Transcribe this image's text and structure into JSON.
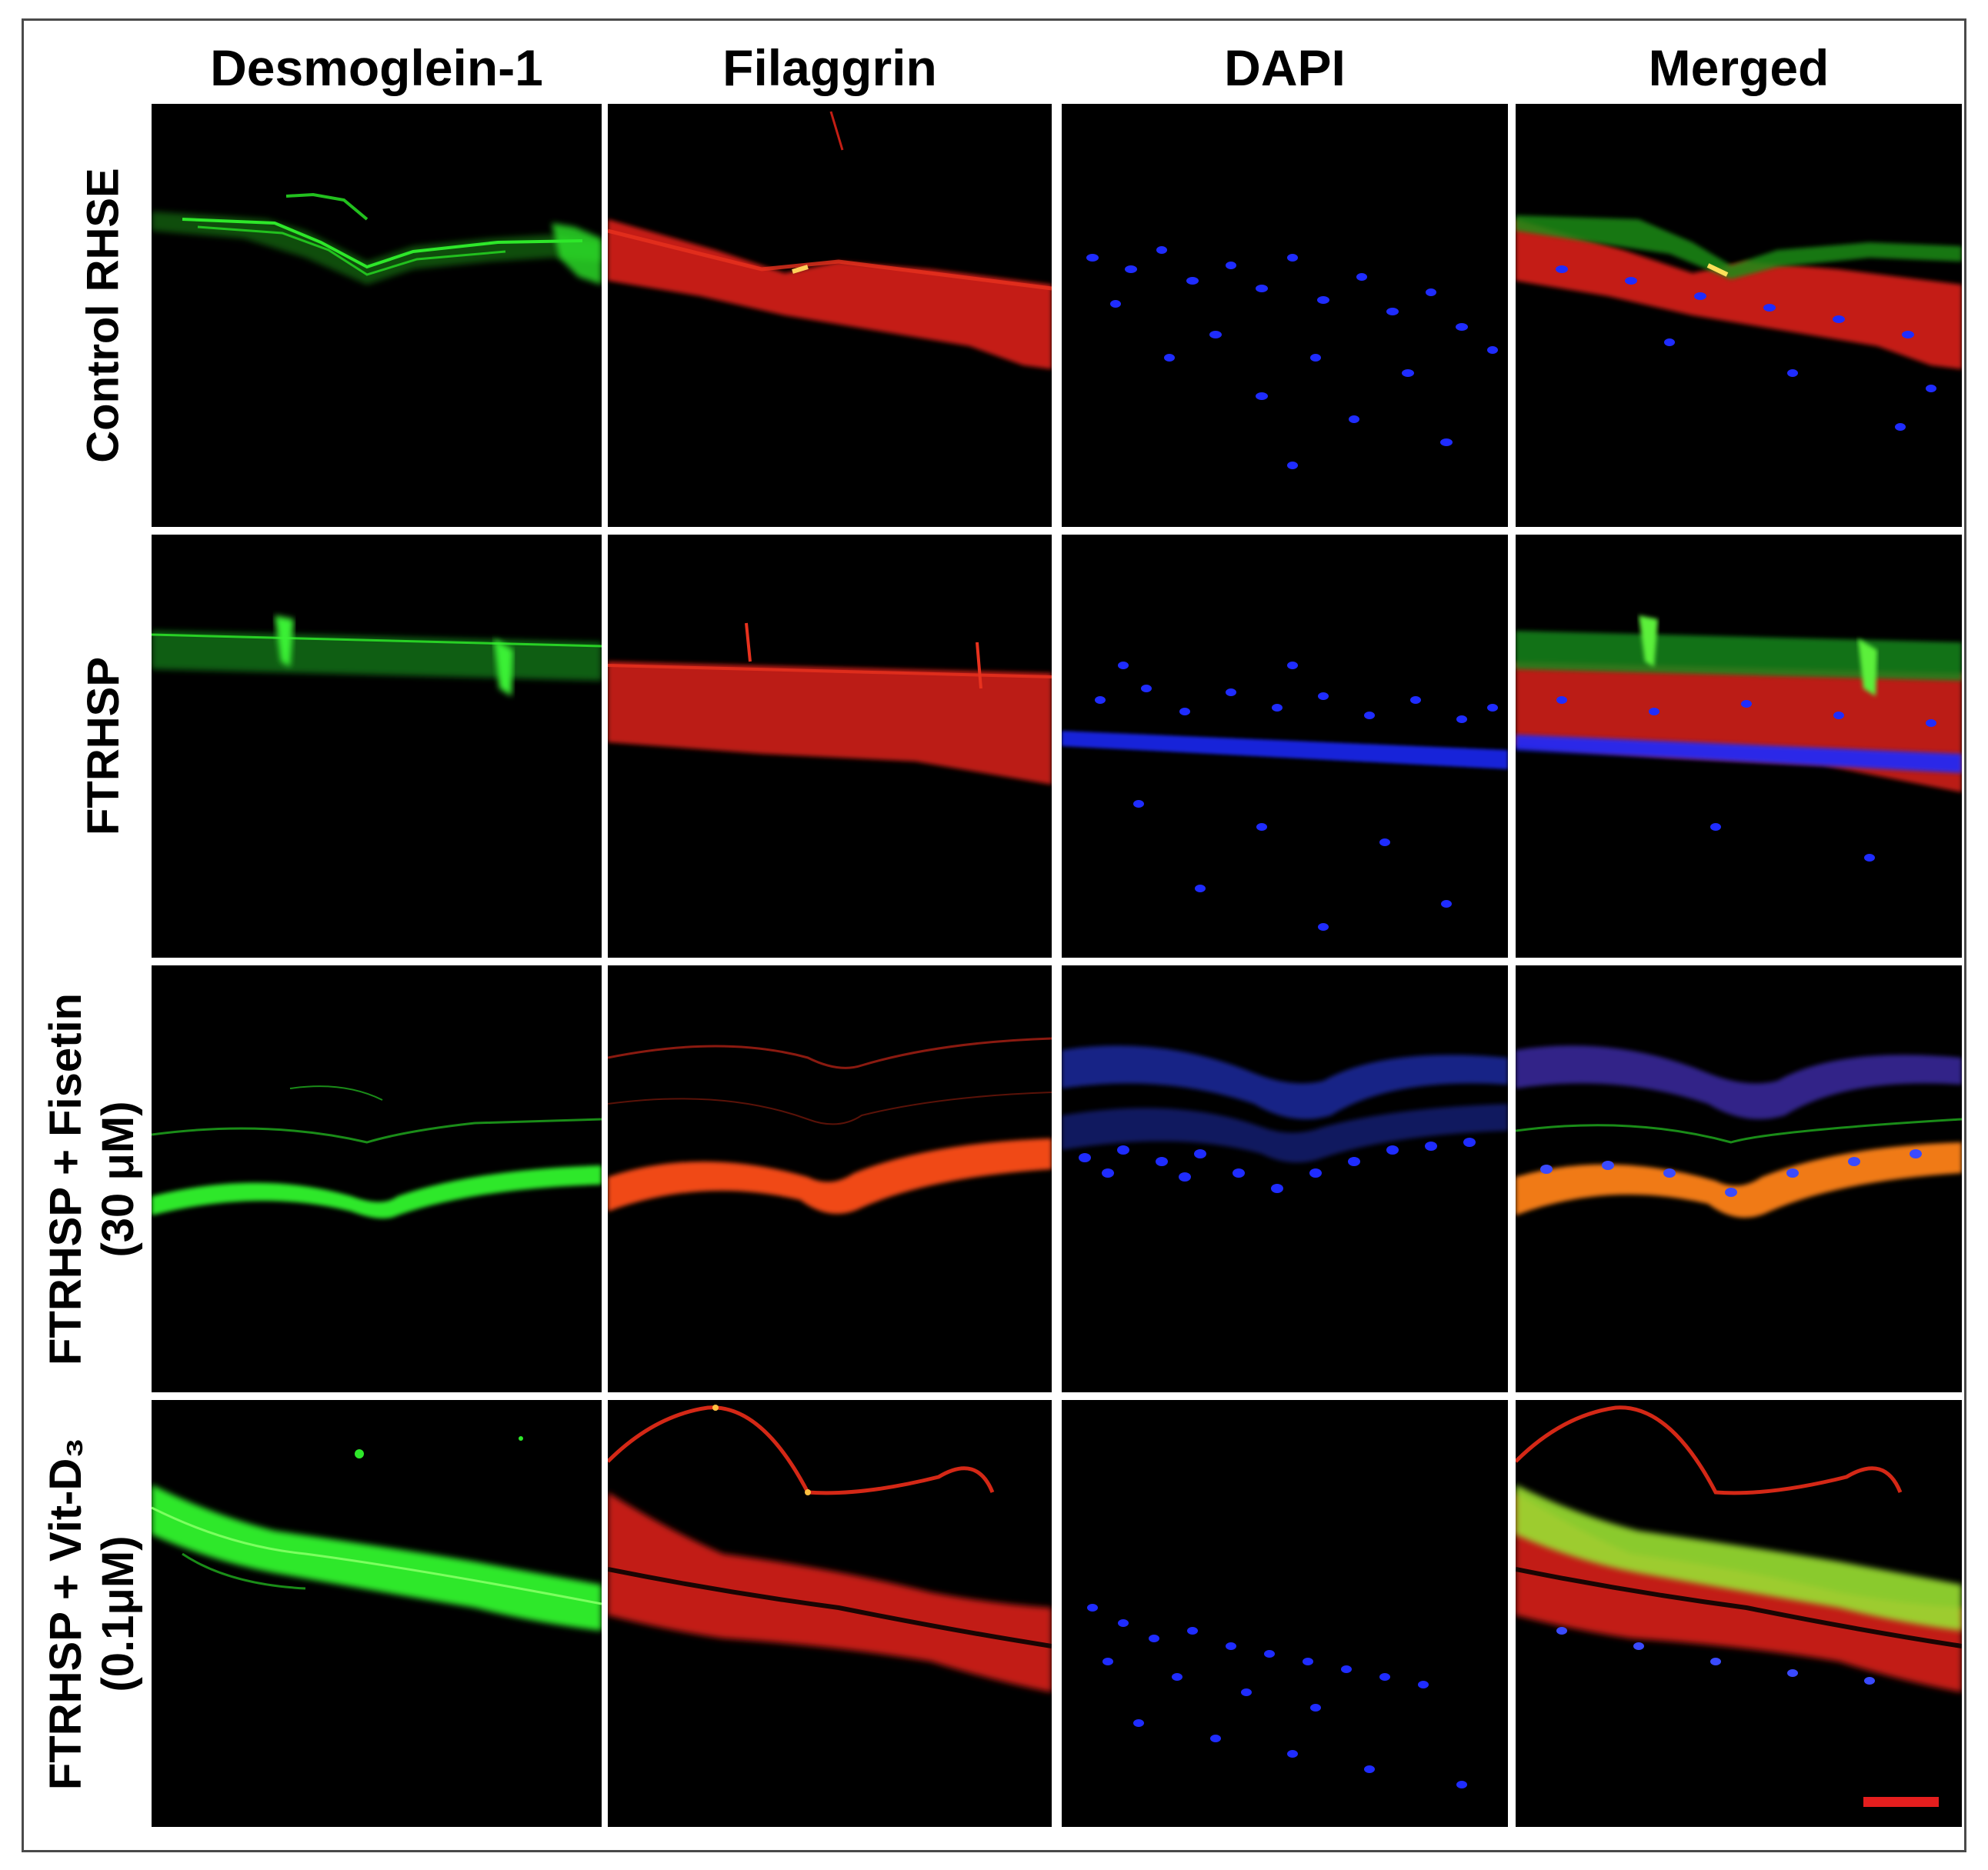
{
  "columns": [
    {
      "id": "desmoglein",
      "label": "Desmoglein-1"
    },
    {
      "id": "filaggrin",
      "label": "Filaggrin"
    },
    {
      "id": "dapi",
      "label": "DAPI"
    },
    {
      "id": "merged",
      "label": "Merged"
    }
  ],
  "rows": [
    {
      "id": "control",
      "label_lines": [
        "Control RHSE"
      ]
    },
    {
      "id": "ftrhsp",
      "label_lines": [
        "FTRHSP"
      ]
    },
    {
      "id": "fisetin",
      "label_lines": [
        "FTRHSP + Fisetin",
        "(30 μM)"
      ]
    },
    {
      "id": "vitd3",
      "label_lines": [
        "FTRHSP + Vit-D₃",
        "(0.1μM)"
      ]
    }
  ],
  "stain_colors": {
    "desmoglein": "#22e01e",
    "filaggrin": "#e8261a",
    "dapi": "#1f2cff",
    "scale_bar": "#e41e1e"
  }
}
